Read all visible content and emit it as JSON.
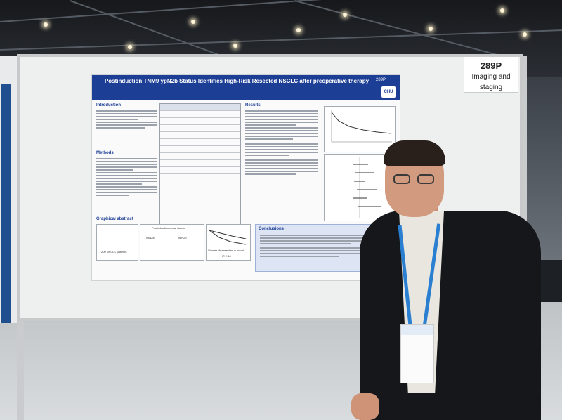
{
  "sign": {
    "number": "289P",
    "topic_line1": "Imaging and",
    "topic_line2": "staging"
  },
  "poster": {
    "title": "Postinduction TNM9 ypN2b Status Identifies High-Risk Resected NSCLC after preoperative therapy",
    "poster_id": "289P",
    "logo_text": "CHU",
    "sections": {
      "introduction": "Introduction",
      "methods": "Methods",
      "graphical_abstract": "Graphical abstract",
      "results": "Results",
      "conclusions": "Conclusions"
    },
    "graphical": {
      "nodal_status": "Postinduction nodal status",
      "patients": "200 NSCLC patients",
      "ypN2a": "ypN2a",
      "ypN2b": "ypN2b",
      "survival": "Shorter disease-free survival",
      "hr": "HR 2.44"
    }
  },
  "colors": {
    "poster_header": "#1c3e95",
    "lanyard": "#2a7fd1"
  }
}
